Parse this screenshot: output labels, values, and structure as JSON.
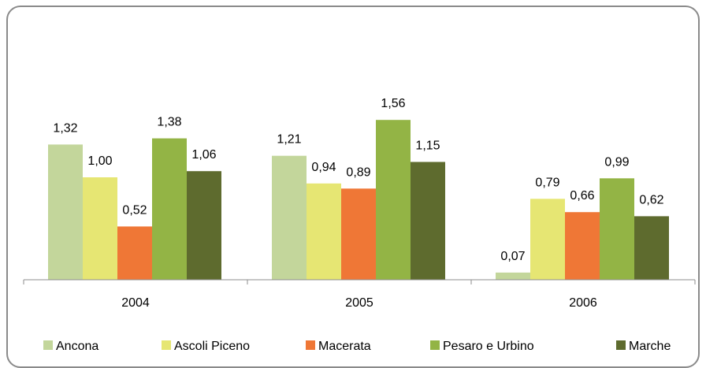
{
  "chart_data": {
    "type": "bar",
    "categories": [
      "2004",
      "2005",
      "2006"
    ],
    "series": [
      {
        "name": "Ancona",
        "color": "#c3d69b",
        "values": [
          1.32,
          1.21,
          0.07
        ],
        "labels": [
          "1,32",
          "1,21",
          "0,07"
        ]
      },
      {
        "name": "Ascoli Piceno",
        "color": "#e6e673",
        "values": [
          1.0,
          0.94,
          0.79
        ],
        "labels": [
          "1,00",
          "0,94",
          "0,79"
        ]
      },
      {
        "name": "Macerata",
        "color": "#ef7736",
        "values": [
          0.52,
          0.89,
          0.66
        ],
        "labels": [
          "0,52",
          "0,89",
          "0,66"
        ]
      },
      {
        "name": "Pesaro e Urbino",
        "color": "#93b445",
        "values": [
          1.38,
          1.56,
          0.99
        ],
        "labels": [
          "1,38",
          "1,56",
          "0,99"
        ]
      },
      {
        "name": "Marche",
        "color": "#5e6b2e",
        "values": [
          1.06,
          1.15,
          0.62
        ],
        "labels": [
          "1,06",
          "1,15",
          "0,62"
        ]
      }
    ],
    "title": "",
    "xlabel": "",
    "ylabel": "",
    "ylim": [
      0,
      1.8
    ],
    "grid": false,
    "legend_position": "bottom"
  }
}
